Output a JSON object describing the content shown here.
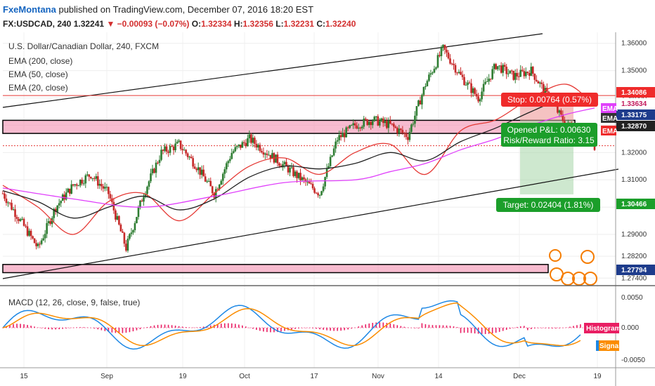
{
  "header": {
    "author": "FxeMontana",
    "published": "published on TradingView.com, December 07, 2016 18:20 EST",
    "symbol": "FX:USDCAD, 240",
    "last": "1.32241",
    "change": "−0.00093 (−0.07%)",
    "o_label": "O:",
    "o": "1.32334",
    "h_label": "H:",
    "h": "1.32356",
    "l_label": "L:",
    "l": "1.32231",
    "c_label": "C:",
    "c": "1.32240"
  },
  "legend": {
    "title": "U.S. Dollar/Canadian Dollar, 240, FXCM",
    "ema200": "EMA (200, close)",
    "ema50": "EMA (50, close)",
    "ema20": "EMA (20, close)"
  },
  "macd": {
    "label": "MACD (12, 26, close, 9, false, true)",
    "histogram_label": "Histogram",
    "signal_label": "Signal",
    "ticks": [
      "0.0050",
      "0.000",
      "-0.0050"
    ]
  },
  "annotations": {
    "stop": "Stop: 0.00764 (0.57%)",
    "pnl": "Opened P&L: 0.00630",
    "rr": "Risk/Reward Ratio: 3.15",
    "target": "Target: 0.02404 (1.81%)",
    "ema_tag": "EMA"
  },
  "price_tags": {
    "stop_level": "1.34086",
    "ema_level": "1.33634",
    "entry_level": "1.33175",
    "current_level": "1.32870",
    "target_level": "1.30466",
    "support_level": "1.27794"
  },
  "chart_data": {
    "type": "line",
    "title": "U.S. Dollar/Canadian Dollar, 240, FXCM",
    "x_tick_labels": [
      "15",
      "Sep",
      "19",
      "Oct",
      "17",
      "Nov",
      "14",
      "Dec",
      "19"
    ],
    "y_tick_labels": [
      "1.36000",
      "1.35000",
      "1.34000",
      "1.33000",
      "1.32000",
      "1.31000",
      "1.30000",
      "1.29000",
      "1.28200",
      "1.27400"
    ],
    "ylim": [
      1.2715,
      1.3625
    ],
    "series": [
      {
        "name": "EMA (20, close)",
        "color": "#e53935",
        "x": [
          0,
          10,
          20,
          30,
          40,
          50,
          60,
          70,
          80,
          90,
          100,
          110,
          120,
          130,
          140,
          150,
          160,
          168
        ],
        "y": [
          1.308,
          1.3,
          1.29,
          1.302,
          1.305,
          1.295,
          1.305,
          1.315,
          1.318,
          1.312,
          1.32,
          1.323,
          1.312,
          1.328,
          1.332,
          1.34,
          1.345,
          1.337
        ]
      },
      {
        "name": "EMA (50, close)",
        "color": "#212121",
        "x": [
          0,
          10,
          20,
          30,
          40,
          50,
          60,
          70,
          80,
          90,
          100,
          110,
          120,
          130,
          140,
          150,
          160,
          168
        ],
        "y": [
          1.306,
          1.302,
          1.296,
          1.3,
          1.304,
          1.299,
          1.303,
          1.311,
          1.315,
          1.314,
          1.316,
          1.32,
          1.317,
          1.324,
          1.329,
          1.335,
          1.34,
          1.339
        ]
      },
      {
        "name": "EMA (200, close)",
        "color": "#e040fb",
        "x": [
          0,
          20,
          40,
          60,
          80,
          100,
          110,
          120,
          130,
          140,
          150,
          160,
          168
        ],
        "y": [
          1.307,
          1.303,
          1.3,
          1.304,
          1.309,
          1.31,
          1.313,
          1.316,
          1.321,
          1.325,
          1.33,
          1.334,
          1.3363
        ]
      }
    ],
    "candle_bias_points": {
      "x": [
        0,
        5,
        10,
        15,
        20,
        25,
        30,
        35,
        40,
        45,
        50,
        55,
        60,
        65,
        70,
        75,
        80,
        85,
        90,
        95,
        100,
        105,
        110,
        115,
        120,
        125,
        130,
        135,
        140,
        145,
        150,
        155,
        160,
        165,
        168
      ],
      "y": [
        1.305,
        1.295,
        1.285,
        1.3,
        1.308,
        1.312,
        1.305,
        1.285,
        1.305,
        1.32,
        1.323,
        1.315,
        1.305,
        1.32,
        1.325,
        1.32,
        1.315,
        1.31,
        1.305,
        1.325,
        1.33,
        1.332,
        1.33,
        1.326,
        1.345,
        1.358,
        1.348,
        1.34,
        1.352,
        1.348,
        1.35,
        1.34,
        1.33,
        1.328,
        1.3224
      ]
    },
    "zones": {
      "resistance_band": [
        1.327,
        1.3318
      ],
      "support_band": [
        1.276,
        1.279
      ]
    },
    "lines": {
      "stop": 1.34086,
      "target": 1.30466,
      "entry": 1.33175
    },
    "grid": true
  }
}
